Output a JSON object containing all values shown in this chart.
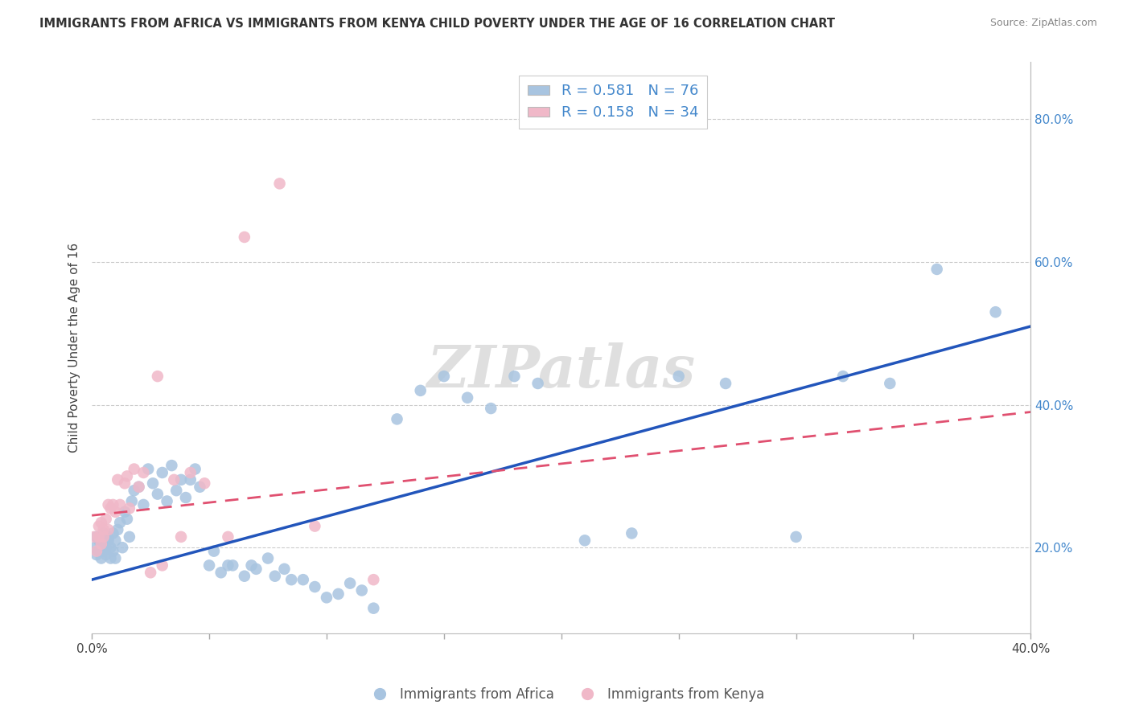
{
  "title": "IMMIGRANTS FROM AFRICA VS IMMIGRANTS FROM KENYA CHILD POVERTY UNDER THE AGE OF 16 CORRELATION CHART",
  "source": "Source: ZipAtlas.com",
  "ylabel": "Child Poverty Under the Age of 16",
  "xlim": [
    0.0,
    0.4
  ],
  "ylim": [
    0.08,
    0.88
  ],
  "xticks": [
    0.0,
    0.05,
    0.1,
    0.15,
    0.2,
    0.25,
    0.3,
    0.35,
    0.4
  ],
  "yticks_right": [
    0.2,
    0.4,
    0.6,
    0.8
  ],
  "africa_color": "#a8c4e0",
  "kenya_color": "#f0b8c8",
  "africa_line_color": "#2255bb",
  "kenya_line_color": "#e05070",
  "legend_label_africa": "Immigrants from Africa",
  "legend_label_kenya": "Immigrants from Kenya",
  "watermark": "ZIPatlas",
  "africa_x": [
    0.001,
    0.002,
    0.002,
    0.003,
    0.003,
    0.004,
    0.004,
    0.005,
    0.005,
    0.006,
    0.006,
    0.007,
    0.007,
    0.008,
    0.008,
    0.009,
    0.009,
    0.01,
    0.01,
    0.011,
    0.012,
    0.013,
    0.014,
    0.015,
    0.016,
    0.017,
    0.018,
    0.02,
    0.022,
    0.024,
    0.026,
    0.028,
    0.03,
    0.032,
    0.034,
    0.036,
    0.038,
    0.04,
    0.042,
    0.044,
    0.046,
    0.05,
    0.052,
    0.055,
    0.058,
    0.06,
    0.065,
    0.068,
    0.07,
    0.075,
    0.078,
    0.082,
    0.085,
    0.09,
    0.095,
    0.1,
    0.105,
    0.11,
    0.115,
    0.12,
    0.13,
    0.14,
    0.15,
    0.16,
    0.17,
    0.18,
    0.19,
    0.21,
    0.23,
    0.25,
    0.27,
    0.3,
    0.32,
    0.34,
    0.36,
    0.385
  ],
  "africa_y": [
    0.2,
    0.19,
    0.215,
    0.195,
    0.21,
    0.185,
    0.205,
    0.195,
    0.22,
    0.2,
    0.19,
    0.21,
    0.215,
    0.185,
    0.2,
    0.195,
    0.22,
    0.185,
    0.21,
    0.225,
    0.235,
    0.2,
    0.25,
    0.24,
    0.215,
    0.265,
    0.28,
    0.285,
    0.26,
    0.31,
    0.29,
    0.275,
    0.305,
    0.265,
    0.315,
    0.28,
    0.295,
    0.27,
    0.295,
    0.31,
    0.285,
    0.175,
    0.195,
    0.165,
    0.175,
    0.175,
    0.16,
    0.175,
    0.17,
    0.185,
    0.16,
    0.17,
    0.155,
    0.155,
    0.145,
    0.13,
    0.135,
    0.15,
    0.14,
    0.115,
    0.38,
    0.42,
    0.44,
    0.41,
    0.395,
    0.44,
    0.43,
    0.21,
    0.22,
    0.44,
    0.43,
    0.215,
    0.44,
    0.43,
    0.59,
    0.53
  ],
  "kenya_x": [
    0.001,
    0.002,
    0.003,
    0.003,
    0.004,
    0.004,
    0.005,
    0.005,
    0.006,
    0.007,
    0.007,
    0.008,
    0.009,
    0.01,
    0.011,
    0.012,
    0.014,
    0.015,
    0.016,
    0.018,
    0.02,
    0.022,
    0.025,
    0.028,
    0.03,
    0.035,
    0.038,
    0.042,
    0.048,
    0.058,
    0.065,
    0.08,
    0.095,
    0.12
  ],
  "kenya_y": [
    0.215,
    0.195,
    0.215,
    0.23,
    0.205,
    0.235,
    0.215,
    0.225,
    0.24,
    0.225,
    0.26,
    0.255,
    0.26,
    0.25,
    0.295,
    0.26,
    0.29,
    0.3,
    0.255,
    0.31,
    0.285,
    0.305,
    0.165,
    0.44,
    0.175,
    0.295,
    0.215,
    0.305,
    0.29,
    0.215,
    0.635,
    0.71,
    0.23,
    0.155
  ],
  "africa_trendline_x": [
    0.0,
    0.4
  ],
  "africa_trendline_y": [
    0.155,
    0.51
  ],
  "kenya_trendline_x": [
    0.0,
    0.4
  ],
  "kenya_trendline_y": [
    0.245,
    0.39
  ]
}
